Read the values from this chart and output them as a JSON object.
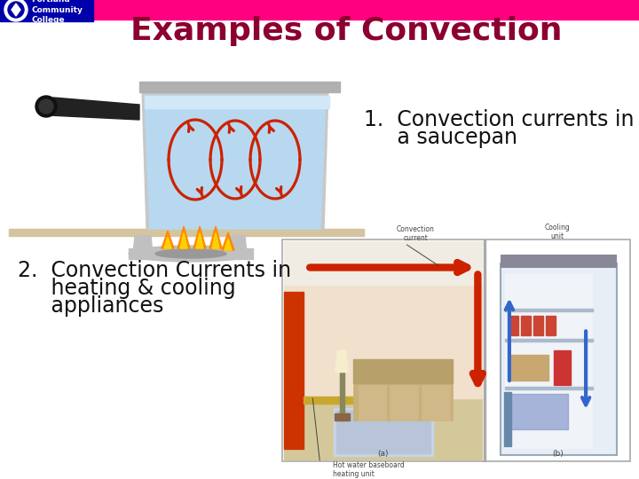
{
  "title": "Examples of Convection",
  "title_color": "#8B0030",
  "title_fontsize": 26,
  "bg_color": "#FFFFFF",
  "header_bar_color": "#FF0080",
  "header_bar_height": 22,
  "logo_bg_color": "#0000AA",
  "logo_text": "Portland\nCommunity\nCollege",
  "item1_line1": "1.  Convection currents in",
  "item1_line2": "     a saucepan",
  "item2_line1": "2.  Convection Currents in",
  "item2_line2": "     heating & cooling",
  "item2_line3": "     appliances",
  "item_fontsize": 17,
  "item_color": "#111111",
  "pan_body_color": "#d8d8d8",
  "pan_rim_color": "#b0b0b0",
  "water_color": "#b8d8f0",
  "water_top_color": "#d0e8f8",
  "handle_color": "#222222",
  "stove_color": "#c0c0c0",
  "stove_dark": "#999999",
  "flame_outer": "#FF8800",
  "flame_inner": "#FFD700",
  "arrow_color": "#CC3300",
  "surface_color": "#d4c4a0",
  "convection_arrow_color": "#CC2200",
  "room_box_bg": "#f5f5f5",
  "room_floor": "#d4c89a",
  "room_wall": "#f0e0cc",
  "room_hot_wall": "#cc3300",
  "room_arrow": "#cc2200",
  "fridge_bg": "#e8eef5",
  "fridge_border": "#aabbcc",
  "caption_color": "#444444",
  "caption_fontsize": 5.5
}
